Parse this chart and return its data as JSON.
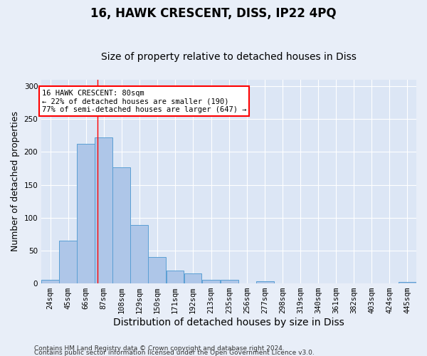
{
  "title": "16, HAWK CRESCENT, DISS, IP22 4PQ",
  "subtitle": "Size of property relative to detached houses in Diss",
  "xlabel": "Distribution of detached houses by size in Diss",
  "ylabel": "Number of detached properties",
  "footnote1": "Contains HM Land Registry data © Crown copyright and database right 2024.",
  "footnote2": "Contains public sector information licensed under the Open Government Licence v3.0.",
  "annotation_title": "16 HAWK CRESCENT: 80sqm",
  "annotation_line1": "← 22% of detached houses are smaller (190)",
  "annotation_line2": "77% of semi-detached houses are larger (647) →",
  "bar_color": "#aec6e8",
  "bar_edge_color": "#5a9fd4",
  "redline_x": 80,
  "categories": [
    "24sqm",
    "45sqm",
    "66sqm",
    "87sqm",
    "108sqm",
    "129sqm",
    "150sqm",
    "171sqm",
    "192sqm",
    "213sqm",
    "235sqm",
    "256sqm",
    "277sqm",
    "298sqm",
    "319sqm",
    "340sqm",
    "361sqm",
    "382sqm",
    "403sqm",
    "424sqm",
    "445sqm"
  ],
  "bin_edges": [
    13.5,
    34.5,
    55.5,
    76.5,
    97.5,
    118.5,
    139.5,
    160.5,
    181.5,
    202.5,
    224.5,
    245.5,
    266.5,
    287.5,
    308.5,
    329.5,
    350.5,
    371.5,
    392.5,
    413.5,
    434.5,
    455.5
  ],
  "values": [
    5,
    65,
    212,
    222,
    177,
    89,
    40,
    20,
    15,
    6,
    5,
    0,
    3,
    0,
    0,
    0,
    0,
    0,
    0,
    0,
    2
  ],
  "ylim": [
    0,
    310
  ],
  "background_color": "#e8eef8",
  "plot_bg_color": "#dce6f5",
  "grid_color": "#ffffff",
  "title_fontsize": 12,
  "subtitle_fontsize": 10,
  "ylabel_fontsize": 9,
  "xlabel_fontsize": 10,
  "tick_fontsize": 7.5,
  "footnote_fontsize": 6.5
}
